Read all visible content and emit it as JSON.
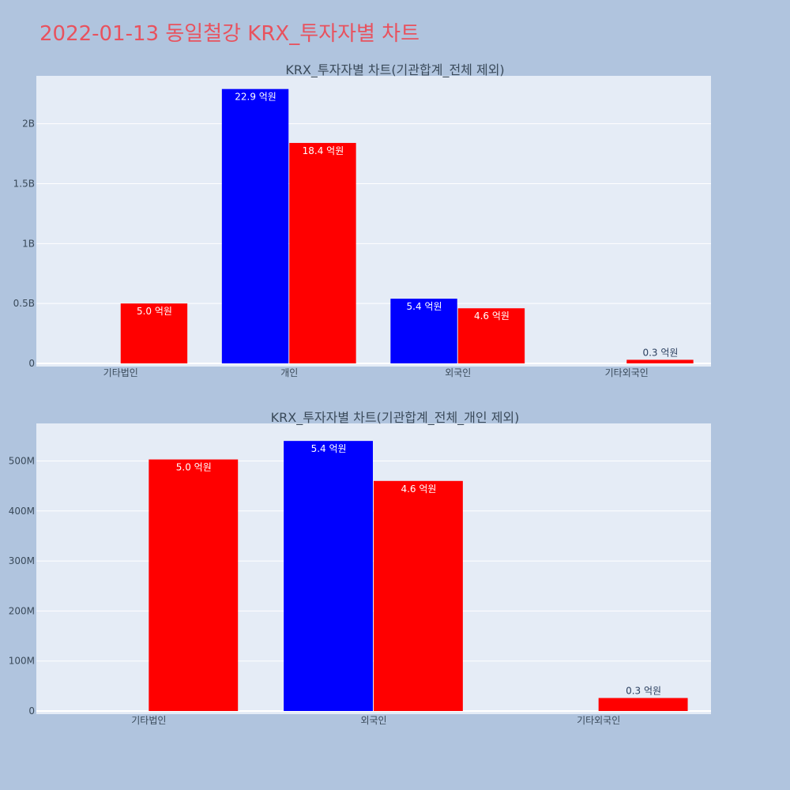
{
  "title": "2022-01-13 동일철강 KRX_투자자별 차트",
  "colors": {
    "title": "#e8525e",
    "series_a": "#0000ff",
    "series_b": "#ff0000",
    "plot_bg": "#e5ecf6",
    "page_bg": "#b0c4de"
  },
  "chart_data": [
    {
      "type": "bar",
      "title": "KRX_투자자별 차트(기관합계_전체 제외)",
      "categories": [
        "기타법인",
        "개인",
        "외국인",
        "기타외국인"
      ],
      "ylim": [
        0,
        2.4
      ],
      "y_unit_scale": 1000000000,
      "yticks": [
        0,
        0.5,
        1,
        1.5,
        2
      ],
      "ytick_labels": [
        "0",
        "0.5B",
        "1B",
        "1.5B",
        "2B"
      ],
      "grid": true,
      "series": [
        {
          "color": "#0000ff",
          "values": [
            null,
            2.29,
            0.54,
            null
          ],
          "labels": [
            "",
            "22.9 억원",
            "5.4 억원",
            ""
          ]
        },
        {
          "color": "#ff0000",
          "values": [
            0.5,
            1.84,
            0.46,
            0.03
          ],
          "labels": [
            "5.0 억원",
            "18.4 억원",
            "4.6 억원",
            "0.3 억원"
          ]
        }
      ]
    },
    {
      "type": "bar",
      "title": "KRX_투자자별 차트(기관합계_전체_개인 제외)",
      "categories": [
        "기타법인",
        "외국인",
        "기타외국인"
      ],
      "ylim": [
        0,
        575
      ],
      "y_unit_scale": 1000000,
      "yticks": [
        0,
        100,
        200,
        300,
        400,
        500
      ],
      "ytick_labels": [
        "0",
        "100M",
        "200M",
        "300M",
        "400M",
        "500M"
      ],
      "grid": true,
      "series": [
        {
          "color": "#0000ff",
          "values": [
            null,
            540,
            null
          ],
          "labels": [
            "",
            "5.4 억원",
            ""
          ]
        },
        {
          "color": "#ff0000",
          "values": [
            503,
            460,
            26
          ],
          "labels": [
            "5.0 억원",
            "4.6 억원",
            "0.3 억원"
          ]
        }
      ]
    }
  ]
}
